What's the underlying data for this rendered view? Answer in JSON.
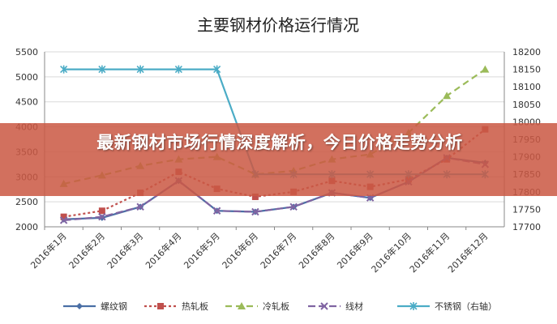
{
  "banner": {
    "headline": "最新钢材市场行情深度解析，今日价格走势分析"
  },
  "chart_data": {
    "type": "line",
    "title": "主要钢材价格运行情况",
    "categories": [
      "2016年1月",
      "2016年2月",
      "2016年3月",
      "2016年4月",
      "2016年5月",
      "2016年6月",
      "2016年7月",
      "2016年8月",
      "2016年9月",
      "2016年10月",
      "2016年11月",
      "2016年12月"
    ],
    "y_left": {
      "min": 2000,
      "max": 5500,
      "ticks": [
        2000,
        2500,
        3000,
        3500,
        4000,
        4500,
        5000,
        5500
      ]
    },
    "y_right": {
      "min": 17700,
      "max": 18200,
      "ticks": [
        17700,
        17750,
        17800,
        17850,
        17900,
        17950,
        18000,
        18050,
        18100,
        18150,
        18200
      ]
    },
    "grid": true,
    "legend_position": "bottom",
    "series": [
      {
        "name": "螺纹钢",
        "axis": "left",
        "color": "#4a6fa5",
        "dash": "",
        "marker": "diamond",
        "values": [
          2150,
          2180,
          2400,
          2920,
          2320,
          2300,
          2400,
          2680,
          2580,
          2900,
          3380,
          3280
        ]
      },
      {
        "name": "热轧板",
        "axis": "left",
        "color": "#c0504d",
        "dash": "3,3",
        "marker": "square",
        "values": [
          2200,
          2320,
          2680,
          3100,
          2760,
          2600,
          2700,
          2920,
          2800,
          2950,
          3350,
          3950
        ]
      },
      {
        "name": "冷轧板",
        "axis": "left",
        "color": "#9bbb59",
        "dash": "8,5",
        "marker": "triangle",
        "values": [
          2860,
          3030,
          3220,
          3350,
          3400,
          3050,
          3120,
          3350,
          3450,
          3880,
          4620,
          5150
        ]
      },
      {
        "name": "线材",
        "axis": "left",
        "color": "#8064a2",
        "dash": "9,4",
        "marker": "x",
        "values": [
          2130,
          2200,
          2400,
          2920,
          2320,
          2300,
          2400,
          2680,
          2580,
          2900,
          3380,
          3250
        ]
      },
      {
        "name": "不锈钢（右轴）",
        "axis": "right",
        "color": "#4bacc6",
        "dash": "",
        "marker": "star",
        "values": [
          18150,
          18150,
          18150,
          18150,
          18150,
          17850,
          17850,
          17850,
          17850,
          17850,
          17850,
          17850
        ]
      }
    ]
  }
}
